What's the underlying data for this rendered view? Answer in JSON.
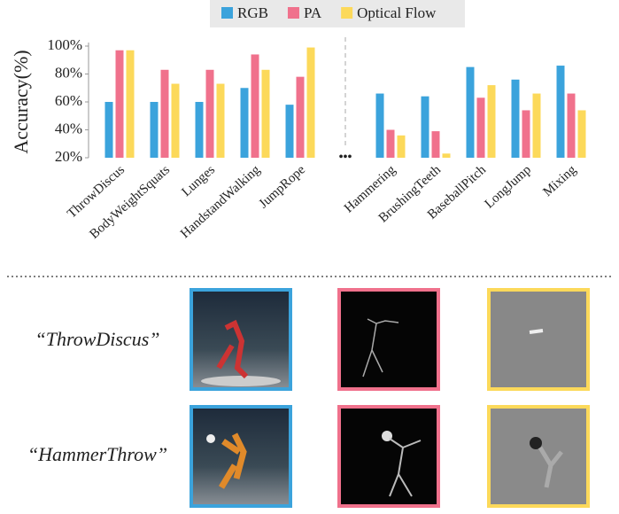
{
  "chart_data": {
    "type": "bar",
    "ylabel": "Accuracy(%)",
    "categories": [
      "ThrowDiscus",
      "BodyWeightSquats",
      "Lunges",
      "HandstandWalking",
      "JumpRope",
      "•••",
      "Hammering",
      "BrushingTeeth",
      "BaseballPitch",
      "LongJump",
      "Mixing"
    ],
    "series": [
      {
        "name": "RGB",
        "color": "#3ba3dc",
        "values": [
          60,
          60,
          60,
          70,
          58,
          null,
          66,
          64,
          85,
          76,
          86
        ]
      },
      {
        "name": "PA",
        "color": "#f0718c",
        "values": [
          97,
          83,
          83,
          94,
          78,
          null,
          40,
          39,
          63,
          54,
          66
        ]
      },
      {
        "name": "Optical Flow",
        "color": "#fcd95a",
        "values": [
          97,
          73,
          73,
          83,
          99,
          null,
          36,
          23,
          72,
          66,
          54
        ]
      }
    ],
    "ylim": [
      20,
      100
    ],
    "yticks": [
      {
        "value": 20,
        "label": "20%"
      },
      {
        "value": 40,
        "label": "40%"
      },
      {
        "value": 60,
        "label": "60%"
      },
      {
        "value": 80,
        "label": "80%"
      },
      {
        "value": 100,
        "label": "100%"
      }
    ],
    "legend": "top"
  },
  "samples": [
    {
      "label": "“ThrowDiscus”"
    },
    {
      "label": "“HammerThrow”"
    }
  ]
}
